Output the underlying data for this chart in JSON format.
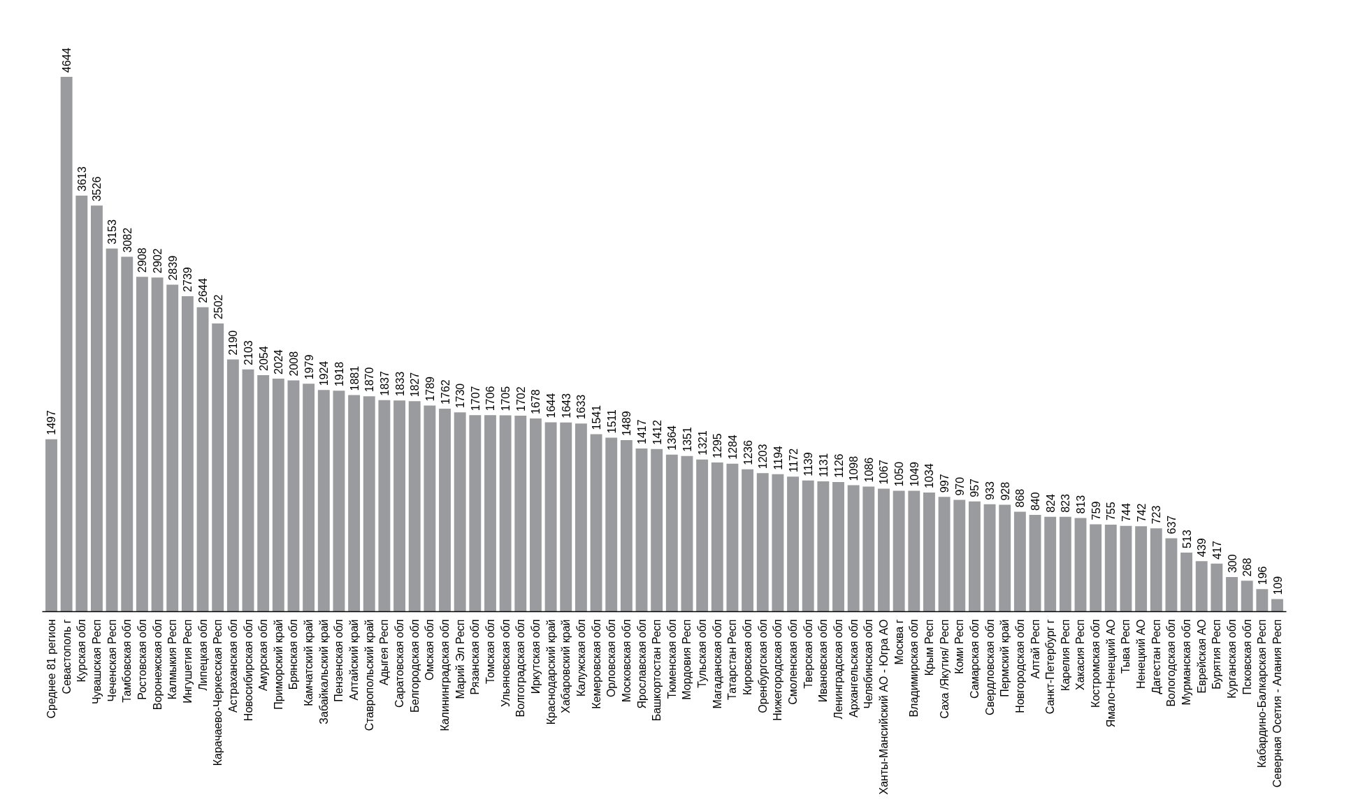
{
  "chart_data": {
    "type": "bar",
    "categories": [
      "Среднее 81 регион",
      "Севастополь г",
      "Курская обл",
      "Чувашская Респ",
      "Чеченская Респ",
      "Тамбовская обл",
      "Ростовская обл",
      "Воронежская обл",
      "Калмыкия Респ",
      "Ингушетия Респ",
      "Липецкая обл",
      "Карачаево-Черкесская Респ",
      "Астраханская обл",
      "Новосибирская обл",
      "Амурская обл",
      "Приморский край",
      "Брянская обл",
      "Камчатский край",
      "Забайкальский край",
      "Пензенская обл",
      "Алтайский край",
      "Ставропольский край",
      "Адыгея Респ",
      "Саратовская обл",
      "Белгородская обл",
      "Омская обл",
      "Калининградская обл",
      "Марий Эл Респ",
      "Рязанская обл",
      "Томская обл",
      "Ульяновская обл",
      "Волгоградская обл",
      "Иркутская обл",
      "Краснодарский край",
      "Хабаровский край",
      "Калужская обл",
      "Кемеровская обл",
      "Орловская обл",
      "Московская обл",
      "Ярославская обл",
      "Башкортостан Респ",
      "Тюменская обл",
      "Мордовия Респ",
      "Тульская обл",
      "Магаданская обл",
      "Татарстан Респ",
      "Кировская обл",
      "Оренбургская обл",
      "Нижегородская обл",
      "Смоленская обл",
      "Тверская обл",
      "Ивановская обл",
      "Ленинградская обл",
      "Архангельская обл",
      "Челябинская обл",
      "Ханты-Мансийский АО - Югра АО",
      "Москва г",
      "Владимирская обл",
      "Крым Респ",
      "Саха /Якутия/ Респ",
      "Коми Респ",
      "Самарская обл",
      "Свердловская обл",
      "Пермский край",
      "Новгородская обл",
      "Алтай Респ",
      "Санкт-Петербург г",
      "Карелия Респ",
      "Хакасия Респ",
      "Костромская обл",
      "Ямало-Ненецкий АО",
      "Тыва Респ",
      "Ненецкий АО",
      "Дагестан Респ",
      "Вологодская обл",
      "Мурманская обл",
      "Еврейская АО",
      "Бурятия Респ",
      "Курганская обл",
      "Псковская обл",
      "Кабардино-Балкарская Респ",
      "Северная Осетия - Алания Респ"
    ],
    "values": [
      1497,
      4644,
      3613,
      3526,
      3153,
      3082,
      2908,
      2902,
      2839,
      2739,
      2644,
      2502,
      2190,
      2103,
      2054,
      2024,
      2008,
      1979,
      1924,
      1918,
      1881,
      1870,
      1837,
      1833,
      1827,
      1789,
      1762,
      1730,
      1707,
      1706,
      1705,
      1702,
      1678,
      1644,
      1643,
      1633,
      1541,
      1511,
      1489,
      1417,
      1412,
      1364,
      1351,
      1321,
      1295,
      1284,
      1236,
      1203,
      1194,
      1172,
      1139,
      1131,
      1126,
      1098,
      1086,
      1067,
      1050,
      1049,
      1034,
      997,
      970,
      957,
      933,
      928,
      868,
      840,
      824,
      823,
      813,
      759,
      755,
      744,
      742,
      723,
      637,
      513,
      439,
      417,
      300,
      268,
      196,
      109
    ],
    "color": "#9a9b9f",
    "data_labels": true,
    "tick_labels": "x",
    "grid": false
  }
}
